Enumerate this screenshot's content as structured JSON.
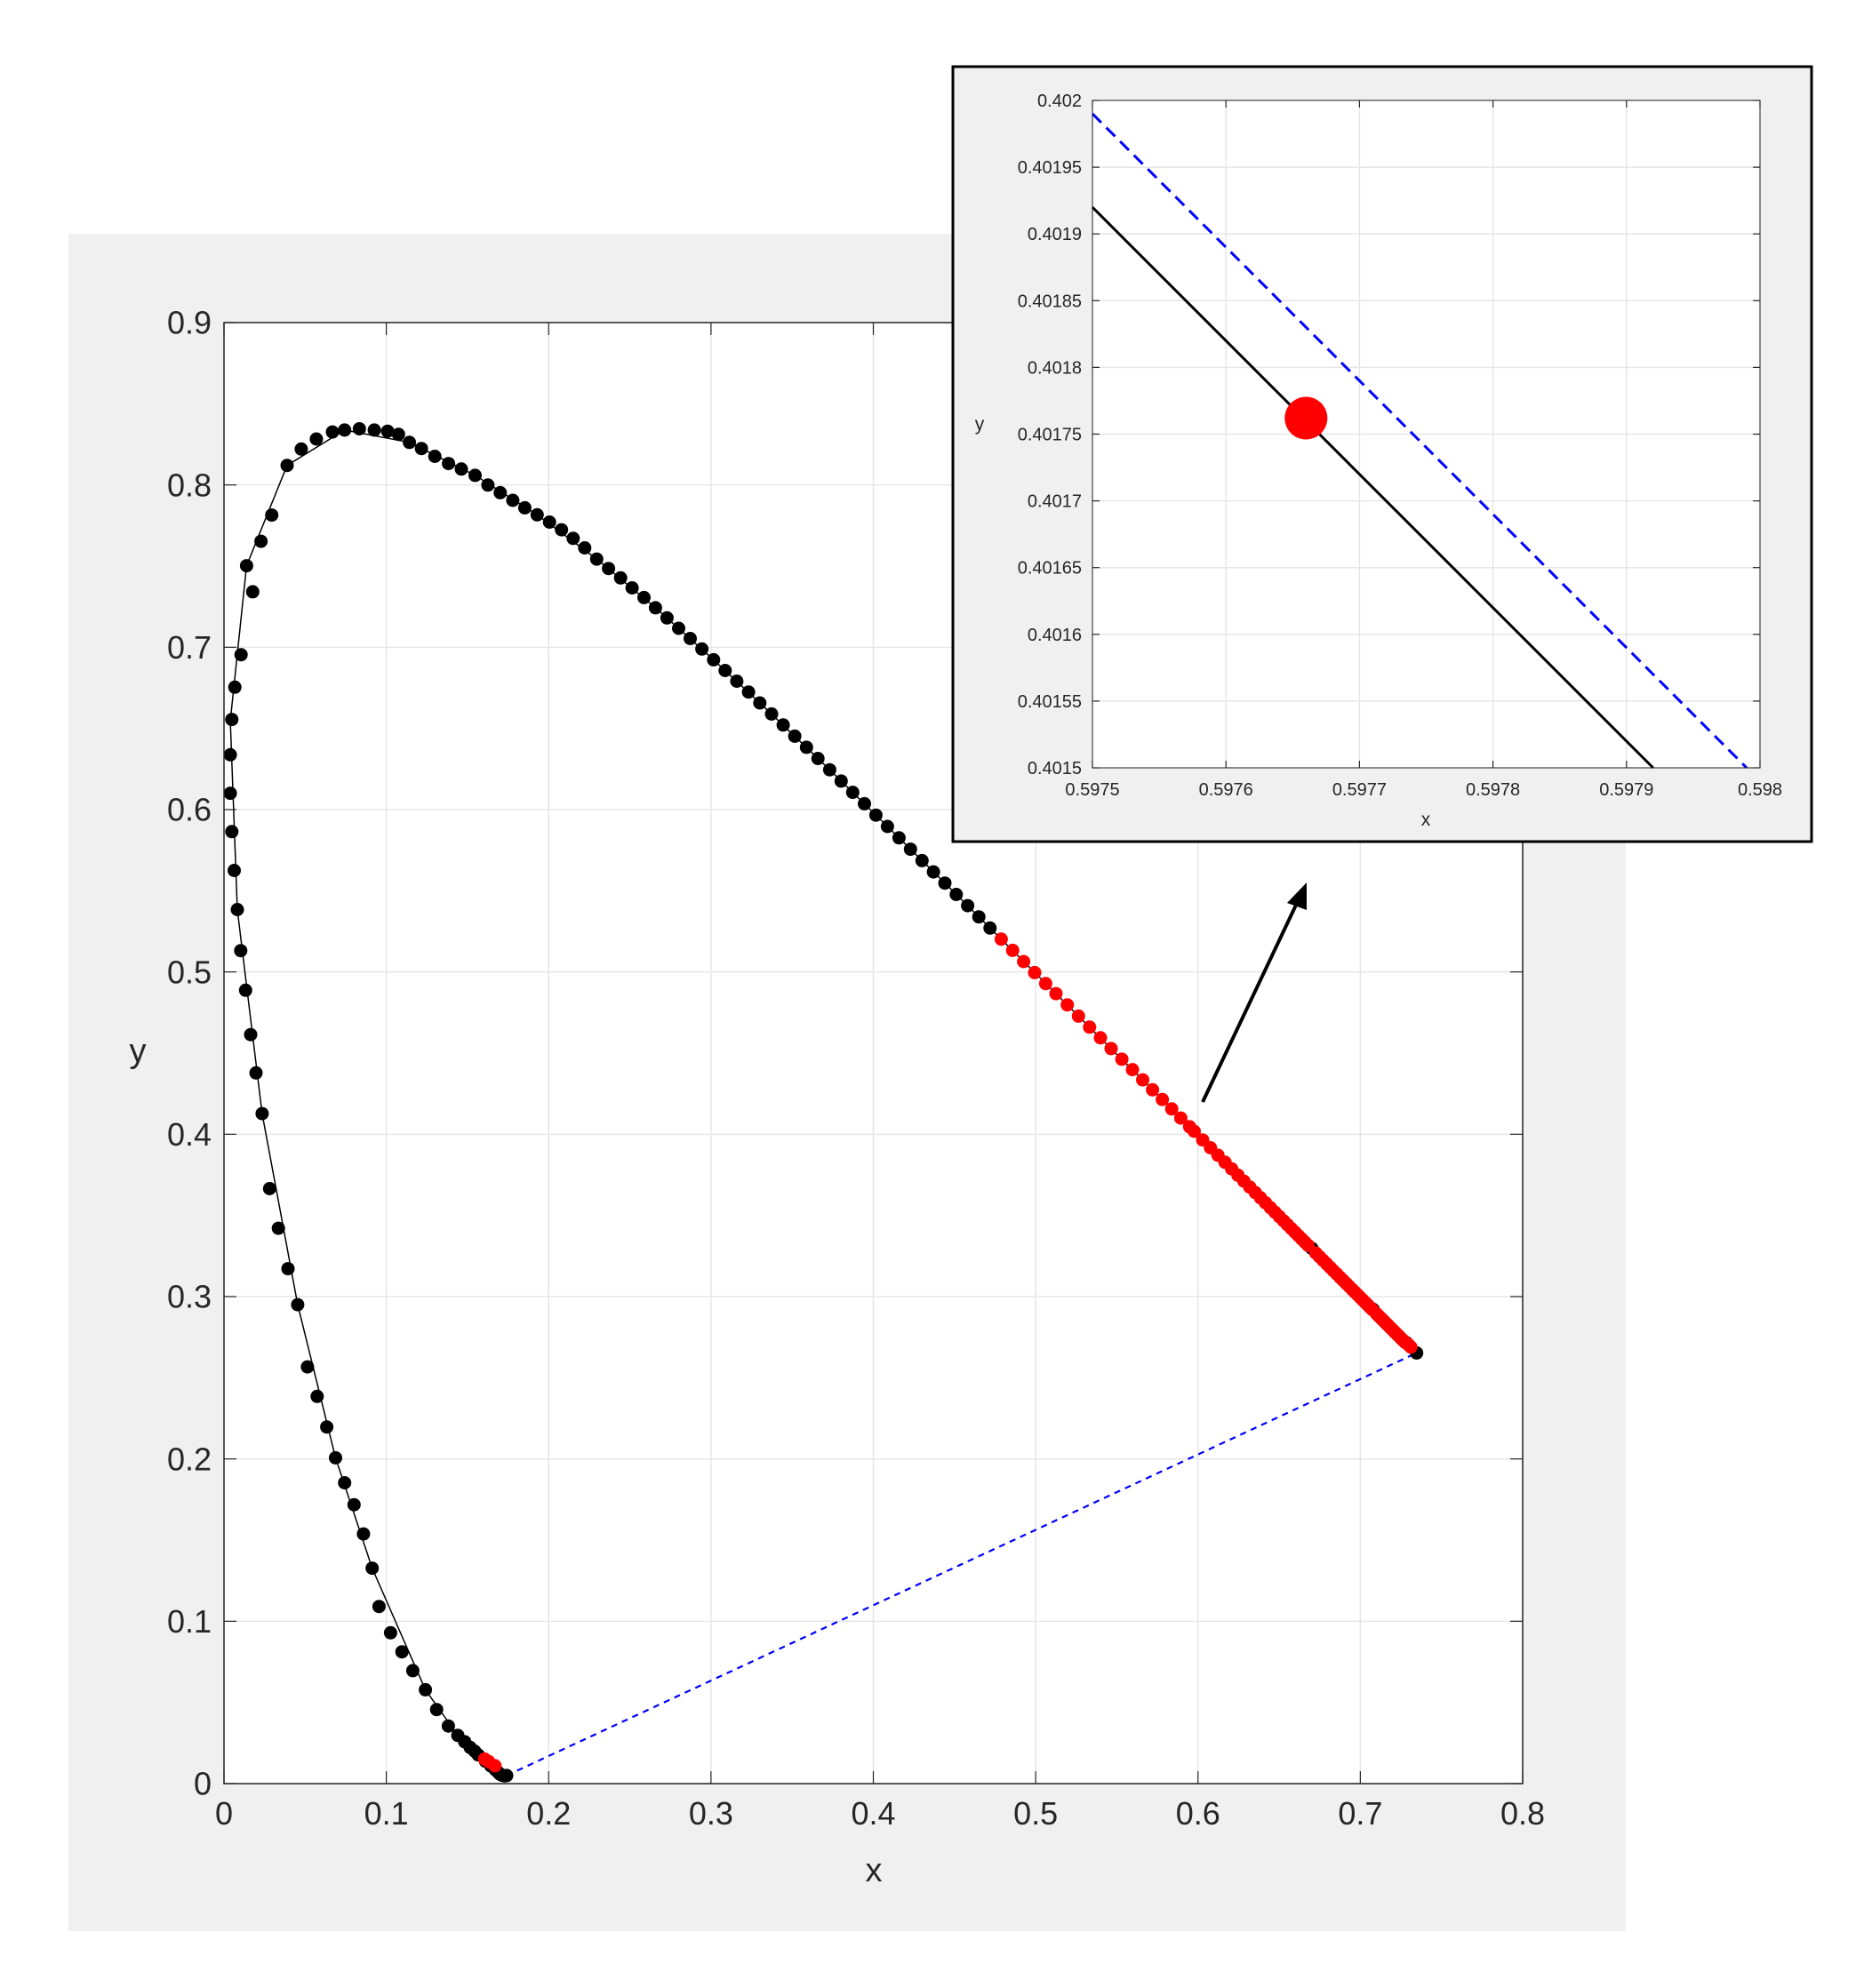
{
  "colors": {
    "figure_background": "#f0f0f0",
    "axes_background": "#ffffff",
    "grid": "#e6e6e6",
    "axis": "#262626",
    "curve_line": "#000000",
    "black_point": "#000000",
    "red_point": "#ff0000",
    "purple_line": "#0000ff",
    "arrow": "#000000"
  },
  "chart_data": [
    {
      "type": "scatter",
      "title": "",
      "xlabel": "x",
      "ylabel": "y",
      "xlim": [
        0,
        0.8
      ],
      "ylim": [
        0,
        0.9
      ],
      "xticks": [
        0,
        0.1,
        0.2,
        0.3,
        0.4,
        0.5,
        0.6,
        0.7,
        0.8
      ],
      "yticks": [
        0,
        0.1,
        0.2,
        0.3,
        0.4,
        0.5,
        0.6,
        0.7,
        0.8,
        0.9
      ],
      "xtick_labels": [
        "0",
        "0.1",
        "0.2",
        "0.3",
        "0.4",
        "0.5",
        "0.6",
        "0.7",
        "0.8"
      ],
      "ytick_labels": [
        "0",
        "0.1",
        "0.2",
        "0.3",
        "0.4",
        "0.5",
        "0.6",
        "0.7",
        "0.8",
        "0.9"
      ],
      "grid": true,
      "series": [
        {
          "style": "line",
          "color": "#000000",
          "x": [
            0.1741,
            0.1738,
            0.1733,
            0.1726,
            0.1714,
            0.1689,
            0.1644,
            0.1566,
            0.144,
            0.1241,
            0.0913,
            0.0687,
            0.0454,
            0.0235,
            0.0082,
            0.0039,
            0.0139,
            0.0389,
            0.0743,
            0.1142,
            0.1547,
            0.1929,
            0.2296,
            0.2658,
            0.3016,
            0.3373,
            0.3731,
            0.4087,
            0.4441,
            0.4788,
            0.5125,
            0.5448,
            0.5752,
            0.6029,
            0.627,
            0.6482,
            0.6658,
            0.6801,
            0.6915,
            0.7006,
            0.7079,
            0.714,
            0.719,
            0.723,
            0.726,
            0.7283,
            0.73,
            0.7311,
            0.732,
            0.7327,
            0.7334,
            0.734,
            0.7344,
            0.7346,
            0.7347
          ],
          "y": [
            0.005,
            0.0049,
            0.0048,
            0.0048,
            0.0051,
            0.0069,
            0.0109,
            0.0177,
            0.0297,
            0.0578,
            0.1327,
            0.2007,
            0.295,
            0.4127,
            0.5384,
            0.6548,
            0.7502,
            0.812,
            0.8338,
            0.8262,
            0.8059,
            0.7816,
            0.7543,
            0.7243,
            0.6923,
            0.6589,
            0.6245,
            0.5896,
            0.5547,
            0.5202,
            0.4866,
            0.4544,
            0.4242,
            0.3965,
            0.3725,
            0.3514,
            0.334,
            0.3197,
            0.3083,
            0.2993,
            0.292,
            0.2859,
            0.2809,
            0.277,
            0.274,
            0.2717,
            0.27,
            0.2689,
            0.268,
            0.2673,
            0.2666,
            0.266,
            0.2656,
            0.2654,
            0.2653
          ]
        },
        {
          "style": "markers",
          "color": "#000000",
          "x": [
            0.1741,
            0.1738,
            0.1733,
            0.1726,
            0.1714,
            0.1701,
            0.1689,
            0.1671,
            0.1644,
            0.1611,
            0.1566,
            0.1544,
            0.1516,
            0.1483,
            0.144,
            0.1382,
            0.131,
            0.1241,
            0.1163,
            0.1096,
            0.1026,
            0.0955,
            0.0913,
            0.0859,
            0.0801,
            0.0743,
            0.0687,
            0.0633,
            0.0574,
            0.0514,
            0.0454,
            0.0394,
            0.0335,
            0.0281,
            0.0235,
            0.0197,
            0.0164,
            0.0133,
            0.0103,
            0.0082,
            0.0063,
            0.0048,
            0.0039,
            0.0039,
            0.0048,
            0.0067,
            0.0105,
            0.0139,
            0.0177,
            0.0228,
            0.0294,
            0.0389,
            0.0476,
            0.0569,
            0.0668,
            0.0743,
            0.0834,
            0.0926,
            0.1008,
            0.1075,
            0.1142,
            0.1216,
            0.1299,
            0.1383,
            0.1462,
            0.1547,
            0.1626,
            0.1702,
            0.1779,
            0.1853,
            0.1929,
            0.2005,
            0.2079,
            0.2151,
            0.2222,
            0.2296,
            0.2369,
            0.2443,
            0.2514,
            0.2587,
            0.2658,
            0.2729,
            0.2801,
            0.2872,
            0.2944,
            0.3016,
            0.3087,
            0.3159,
            0.3231,
            0.3301,
            0.3373,
            0.3445,
            0.3516,
            0.3588,
            0.3659,
            0.3731,
            0.3802,
            0.3873,
            0.3945,
            0.4016,
            0.4087,
            0.4158,
            0.4229,
            0.43,
            0.437,
            0.4441,
            0.4511,
            0.4581,
            0.465,
            0.4719,
            0.6701,
            0.7079,
            0.7283,
            0.7347
          ],
          "y": [
            0.005,
            0.0049,
            0.0048,
            0.0048,
            0.0051,
            0.0058,
            0.0069,
            0.0086,
            0.0109,
            0.0138,
            0.0177,
            0.02,
            0.0223,
            0.0258,
            0.0297,
            0.0355,
            0.0456,
            0.0578,
            0.0696,
            0.0812,
            0.0929,
            0.1091,
            0.1327,
            0.1538,
            0.1718,
            0.1853,
            0.2007,
            0.2197,
            0.2385,
            0.2567,
            0.295,
            0.3172,
            0.3421,
            0.3665,
            0.4127,
            0.4378,
            0.4614,
            0.4887,
            0.5131,
            0.5384,
            0.5625,
            0.5864,
            0.6101,
            0.6338,
            0.6555,
            0.6754,
            0.6954,
            0.7502,
            0.7342,
            0.7653,
            0.7814,
            0.812,
            0.8221,
            0.8283,
            0.8326,
            0.8338,
            0.8346,
            0.8338,
            0.8331,
            0.8312,
            0.8262,
            0.8224,
            0.8176,
            0.8132,
            0.8098,
            0.8059,
            0.7999,
            0.7952,
            0.7905,
            0.7859,
            0.7816,
            0.7771,
            0.7724,
            0.7671,
            0.7612,
            0.7543,
            0.7485,
            0.7427,
            0.7366,
            0.7306,
            0.7243,
            0.7181,
            0.7117,
            0.7054,
            0.6989,
            0.6923,
            0.6857,
            0.6791,
            0.6724,
            0.6657,
            0.6589,
            0.6521,
            0.6452,
            0.6384,
            0.6315,
            0.6245,
            0.6176,
            0.6106,
            0.6036,
            0.5966,
            0.5896,
            0.5826,
            0.5756,
            0.5686,
            0.5616,
            0.5547,
            0.5477,
            0.5408,
            0.5339,
            0.527,
            0.3297,
            0.2921,
            0.2717,
            0.2653
          ]
        },
        {
          "style": "markers",
          "color": "#ff0000",
          "x": [
            0.1606,
            0.1631,
            0.1669,
            0.4788,
            0.4858,
            0.4926,
            0.4994,
            0.5062,
            0.5125,
            0.5195,
            0.5264,
            0.5332,
            0.5399,
            0.5465,
            0.5531,
            0.5596,
            0.5659,
            0.572,
            0.578,
            0.5838,
            0.5894,
            0.5948,
            0.5977,
            0.6029,
            0.6077,
            0.6123,
            0.6166,
            0.6207,
            0.6246,
            0.6283,
            0.6319,
            0.6353,
            0.6385,
            0.6416,
            0.6446,
            0.6474,
            0.6501,
            0.6527,
            0.6551,
            0.6575,
            0.6598,
            0.6619,
            0.664,
            0.6659,
            0.6678,
            0.6726,
            0.6749,
            0.6771,
            0.6793,
            0.6814,
            0.6835,
            0.6855,
            0.6875,
            0.6894,
            0.6913,
            0.6931,
            0.6949,
            0.6966,
            0.6983,
            0.6999,
            0.7015,
            0.703,
            0.7045,
            0.7059,
            0.7073,
            0.7099,
            0.7112,
            0.7124,
            0.7136,
            0.7148,
            0.7159,
            0.717,
            0.718,
            0.719,
            0.72,
            0.7209,
            0.7218,
            0.7227,
            0.7235,
            0.7243,
            0.725,
            0.7257,
            0.7264,
            0.7276,
            0.7294,
            0.73,
            0.7311
          ],
          "y": [
            0.0151,
            0.0135,
            0.011,
            0.5202,
            0.5133,
            0.5064,
            0.4996,
            0.4928,
            0.4866,
            0.4797,
            0.4728,
            0.466,
            0.4594,
            0.4528,
            0.4462,
            0.4398,
            0.4335,
            0.4274,
            0.4214,
            0.4156,
            0.41,
            0.4046,
            0.4018,
            0.3965,
            0.3917,
            0.3871,
            0.3828,
            0.3787,
            0.3748,
            0.3711,
            0.3675,
            0.3641,
            0.3609,
            0.3578,
            0.3548,
            0.352,
            0.3493,
            0.3467,
            0.3443,
            0.3419,
            0.3396,
            0.3375,
            0.3354,
            0.3335,
            0.3316,
            0.3268,
            0.3245,
            0.3223,
            0.3201,
            0.318,
            0.3159,
            0.3139,
            0.3119,
            0.31,
            0.3081,
            0.3063,
            0.3045,
            0.3028,
            0.3011,
            0.2995,
            0.2979,
            0.2964,
            0.2949,
            0.2935,
            0.2921,
            0.2895,
            0.2882,
            0.287,
            0.2858,
            0.2846,
            0.2835,
            0.2824,
            0.2814,
            0.2804,
            0.2794,
            0.2785,
            0.2776,
            0.2767,
            0.2759,
            0.2751,
            0.2744,
            0.2737,
            0.273,
            0.2718,
            0.2706,
            0.27,
            0.2689
          ]
        },
        {
          "style": "dashed-line",
          "color": "#0000ff",
          "x": [
            0.1741,
            0.7347
          ],
          "y": [
            0.005,
            0.2653
          ]
        }
      ]
    },
    {
      "type": "scatter",
      "title": "",
      "xlabel": "x",
      "ylabel": "y",
      "xlim": [
        0.5975,
        0.598
      ],
      "ylim": [
        0.4015,
        0.402
      ],
      "xticks": [
        0.5975,
        0.5976,
        0.5977,
        0.5978,
        0.5979,
        0.598
      ],
      "yticks": [
        0.4015,
        0.40155,
        0.4016,
        0.40165,
        0.4017,
        0.40175,
        0.4018,
        0.40185,
        0.4019,
        0.40195,
        0.402
      ],
      "xtick_labels": [
        "0.5975",
        "0.5976",
        "0.5977",
        "0.5978",
        "0.5979",
        "0.598"
      ],
      "ytick_labels": [
        "0.4015",
        "0.40155",
        "0.4016",
        "0.40165",
        "0.4017",
        "0.40175",
        "0.4018",
        "0.40185",
        "0.4019",
        "0.40195",
        "0.402"
      ],
      "grid": true,
      "series": [
        {
          "style": "line",
          "color": "#000000",
          "x": [
            0.5975,
            0.59792
          ],
          "y": [
            0.40192,
            0.4015
          ]
        },
        {
          "style": "dashed-line",
          "color": "#0000ff",
          "x": [
            0.5975,
            0.59799
          ],
          "y": [
            0.40199,
            0.4015
          ]
        },
        {
          "style": "marker",
          "color": "#ff0000",
          "x": [
            0.59766
          ],
          "y": [
            0.401762
          ]
        }
      ]
    }
  ]
}
